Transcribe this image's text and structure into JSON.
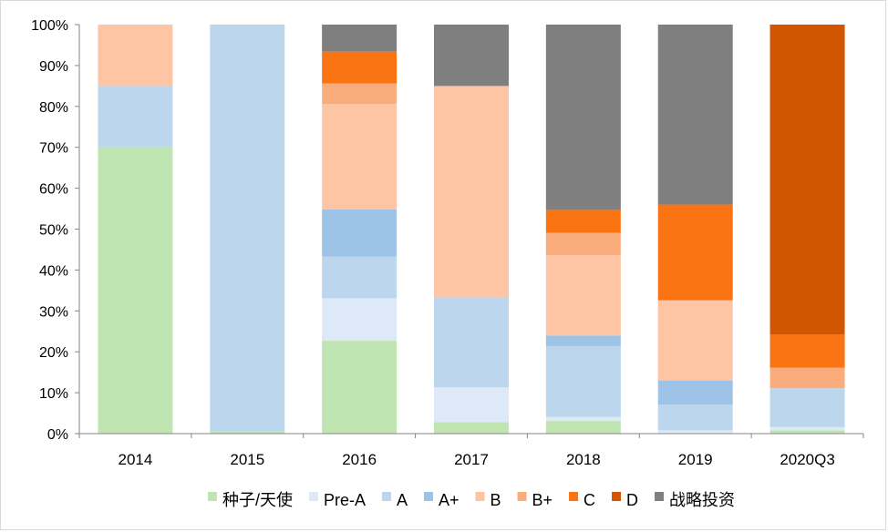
{
  "chart_data": {
    "type": "bar",
    "stacked": true,
    "percent": true,
    "categories": [
      "2014",
      "2015",
      "2016",
      "2017",
      "2018",
      "2019",
      "2020Q3"
    ],
    "y_ticks": [
      "0%",
      "10%",
      "20%",
      "30%",
      "40%",
      "50%",
      "60%",
      "70%",
      "80%",
      "90%",
      "100%"
    ],
    "ylim": [
      0,
      100
    ],
    "grid": false,
    "legend": "bottom",
    "series": [
      {
        "name": "种子/天使",
        "color": "#c0e5b3",
        "values": [
          70,
          0.5,
          22.7,
          2.8,
          3.1,
          0,
          0.8
        ]
      },
      {
        "name": "Pre-A",
        "color": "#dde9f7",
        "values": [
          0,
          0,
          10.4,
          8.5,
          1.0,
          0.8,
          0.8
        ]
      },
      {
        "name": "A",
        "color": "#bcd6ee",
        "values": [
          15,
          99.5,
          10.2,
          22.0,
          17.3,
          6.3,
          9.5
        ]
      },
      {
        "name": "A+",
        "color": "#9dc3e7",
        "values": [
          0,
          0,
          11.5,
          0,
          2.6,
          5.9,
          0
        ]
      },
      {
        "name": "B",
        "color": "#fdc5a3",
        "values": [
          15,
          0,
          25.8,
          51.7,
          19.6,
          19.6,
          0
        ]
      },
      {
        "name": "B+",
        "color": "#fbac7d",
        "values": [
          0,
          0,
          5.0,
          0,
          5.5,
          0,
          5.0
        ]
      },
      {
        "name": "C",
        "color": "#fb7413",
        "values": [
          0,
          0,
          7.8,
          0,
          5.6,
          23.4,
          8.1
        ]
      },
      {
        "name": "D",
        "color": "#d25500",
        "values": [
          0,
          0,
          0,
          0,
          0,
          0,
          75.8
        ]
      },
      {
        "name": "战略投资",
        "color": "#7f7f7f",
        "values": [
          0,
          0,
          6.6,
          15.0,
          45.3,
          44.0,
          0
        ]
      }
    ]
  }
}
